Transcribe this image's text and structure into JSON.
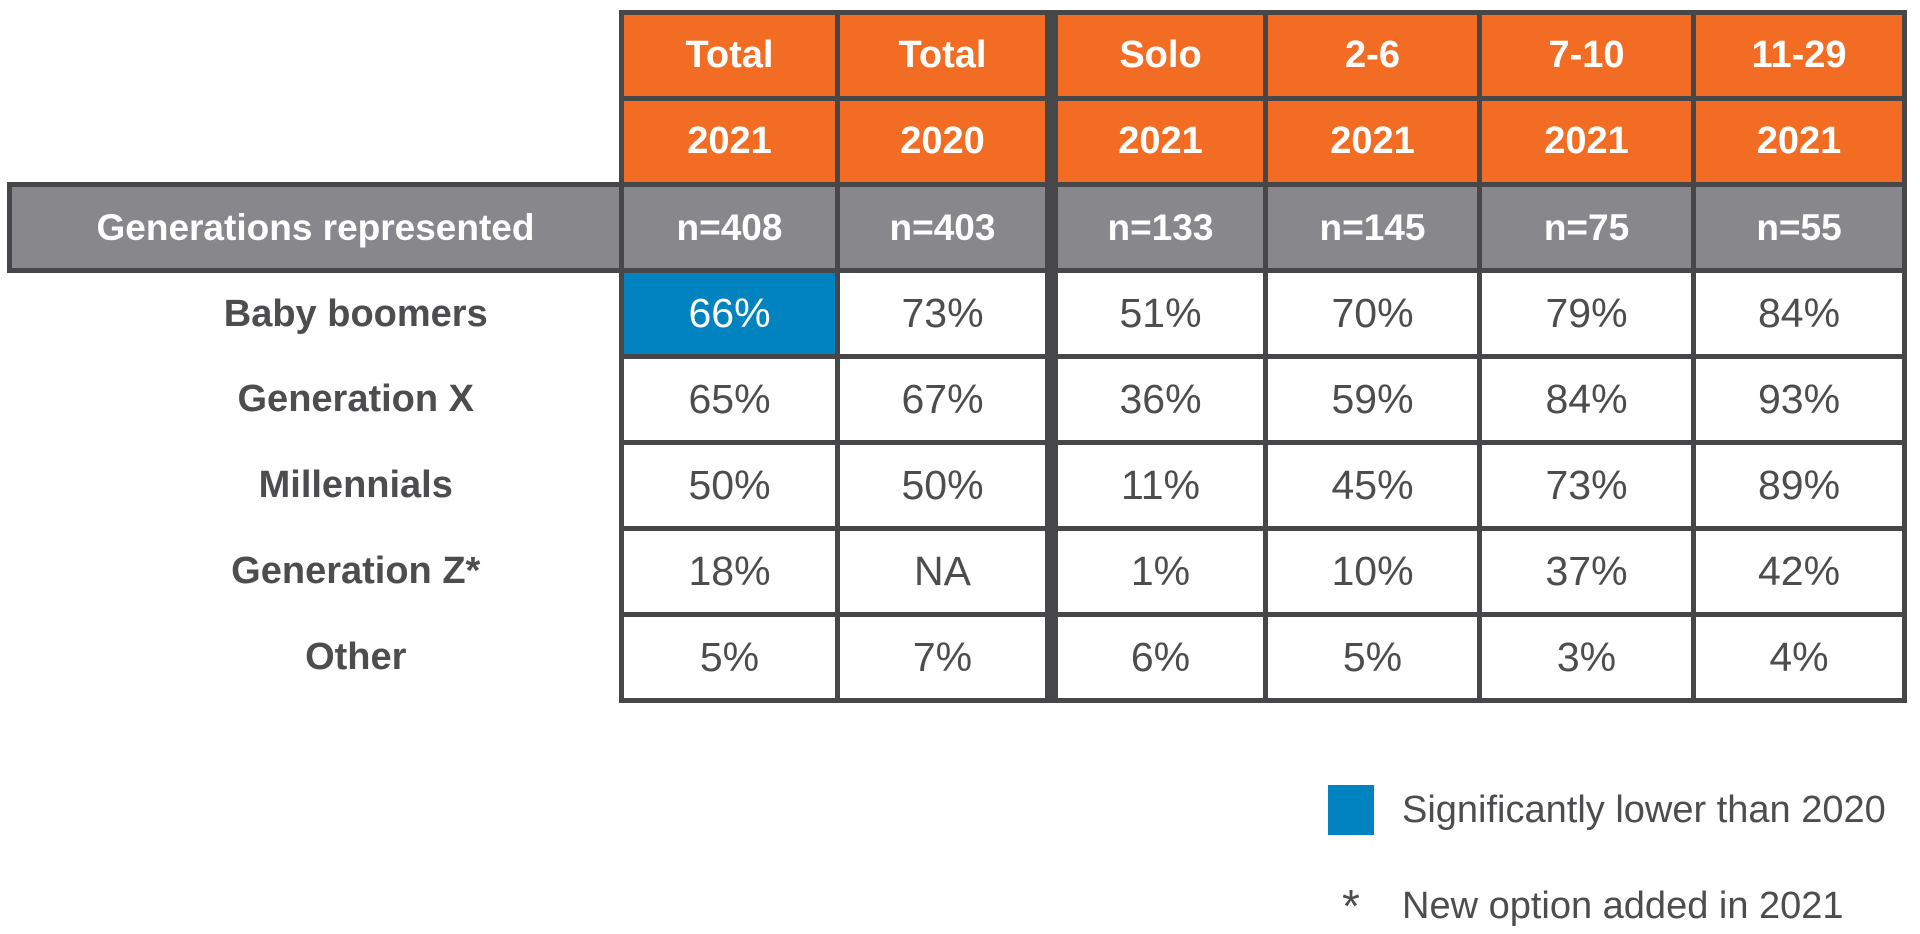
{
  "table": {
    "section_label": "Generations represented",
    "col_headers": [
      {
        "line1": "Total",
        "line2": "2021"
      },
      {
        "line1": "Total",
        "line2": "2020"
      },
      {
        "line1": "Solo",
        "line2": "2021"
      },
      {
        "line1": "2-6",
        "line2": "2021"
      },
      {
        "line1": "7-10",
        "line2": "2021"
      },
      {
        "line1": "11-29",
        "line2": "2021"
      }
    ],
    "n_values": [
      "n=408",
      "n=403",
      "n=133",
      "n=145",
      "n=75",
      "n=55"
    ],
    "rows": [
      {
        "label": "Baby boomers",
        "values": [
          "66%",
          "73%",
          "51%",
          "70%",
          "79%",
          "84%"
        ]
      },
      {
        "label": "Generation X",
        "values": [
          "65%",
          "67%",
          "36%",
          "59%",
          "84%",
          "93%"
        ]
      },
      {
        "label": "Millennials",
        "values": [
          "50%",
          "50%",
          "11%",
          "45%",
          "73%",
          "89%"
        ]
      },
      {
        "label": "Generation Z*",
        "values": [
          "18%",
          "NA",
          "1%",
          "10%",
          "37%",
          "42%"
        ]
      },
      {
        "label": "Other",
        "values": [
          "5%",
          "7%",
          "6%",
          "5%",
          "3%",
          "4%"
        ]
      }
    ]
  },
  "legend": {
    "highlight_label": "Significantly lower than 2020",
    "asterisk_symbol": "*",
    "asterisk_label": "New option added in 2021"
  },
  "colors": {
    "orange_header": "#F26C23",
    "gray_header": "#88888C",
    "blue_highlight": "#0083BE",
    "border": "#474749",
    "text_dark": "#4D4D4F",
    "text_white": "#FFFFFF"
  },
  "chart_data": {
    "type": "table",
    "title": "Generations represented",
    "columns": [
      "Total 2021",
      "Total 2020",
      "Solo 2021",
      "2-6 2021",
      "7-10 2021",
      "11-29 2021"
    ],
    "sample_sizes": [
      408,
      403,
      133,
      145,
      75,
      55
    ],
    "rows": [
      {
        "category": "Baby boomers",
        "values": [
          "66%",
          "73%",
          "51%",
          "70%",
          "79%",
          "84%"
        ]
      },
      {
        "category": "Generation X",
        "values": [
          "65%",
          "67%",
          "36%",
          "59%",
          "84%",
          "93%"
        ]
      },
      {
        "category": "Millennials",
        "values": [
          "50%",
          "50%",
          "11%",
          "45%",
          "73%",
          "89%"
        ]
      },
      {
        "category": "Generation Z*",
        "values": [
          "18%",
          "NA",
          "1%",
          "10%",
          "37%",
          "42%"
        ]
      },
      {
        "category": "Other",
        "values": [
          "5%",
          "7%",
          "6%",
          "5%",
          "3%",
          "4%"
        ]
      }
    ],
    "highlighted_cell": {
      "row": "Baby boomers",
      "column": "Total 2021",
      "value": "66%",
      "meaning": "Significantly lower than 2020"
    },
    "footnotes": [
      "Significantly lower than 2020 (blue)",
      "* New option added in 2021"
    ]
  }
}
